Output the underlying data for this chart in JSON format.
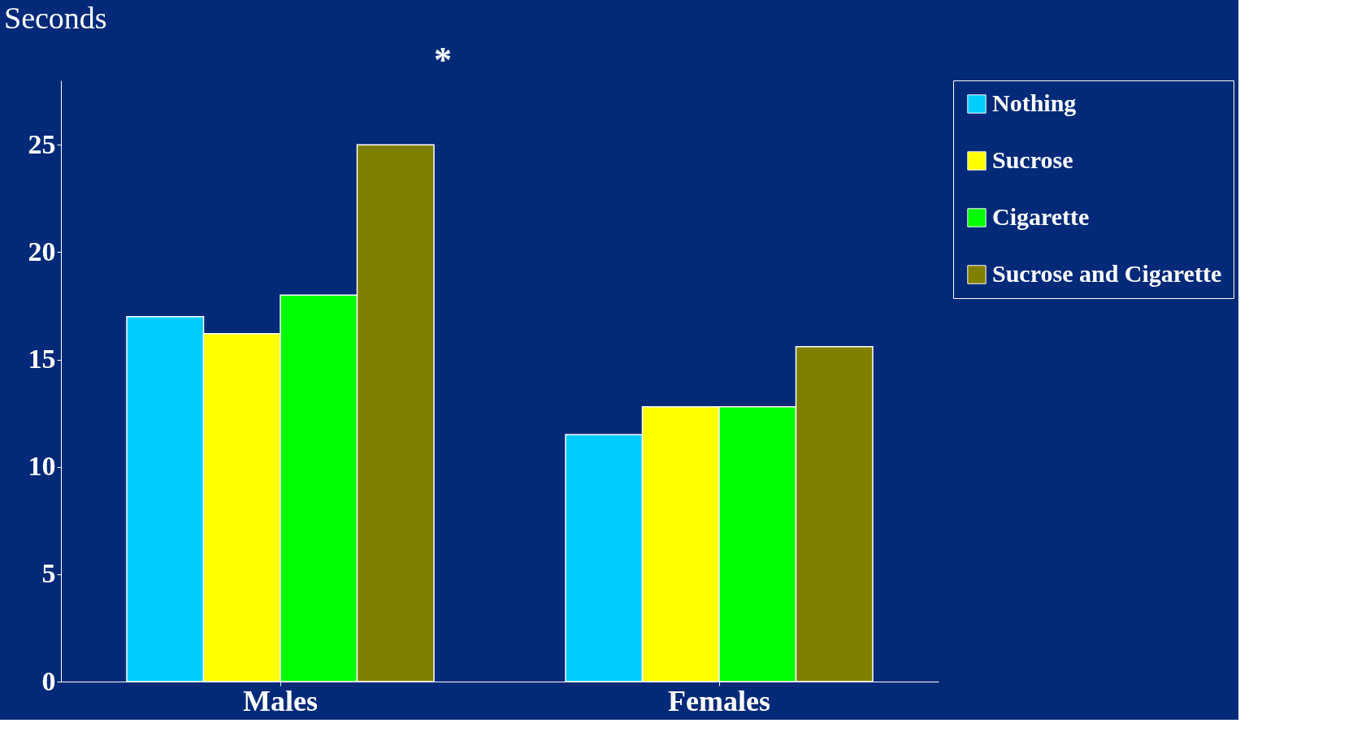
{
  "chart_data": {
    "type": "bar",
    "ylabel": "Seconds",
    "categories": [
      "Males",
      "Females"
    ],
    "series": [
      {
        "name": "Nothing",
        "color": "#00ccff",
        "values": [
          17.0,
          11.5
        ]
      },
      {
        "name": "Sucrose",
        "color": "#ffff00",
        "values": [
          16.2,
          12.8
        ]
      },
      {
        "name": "Cigarette",
        "color": "#00ff00",
        "values": [
          18.0,
          12.8
        ]
      },
      {
        "name": "Sucrose and Cigarette",
        "color": "#808000",
        "values": [
          25.0,
          15.6
        ]
      }
    ],
    "ylim": [
      0,
      28
    ],
    "yticks": [
      0,
      5,
      10,
      15,
      20,
      25
    ],
    "grid": false,
    "legend": "top right",
    "annotations": [
      "*"
    ]
  }
}
